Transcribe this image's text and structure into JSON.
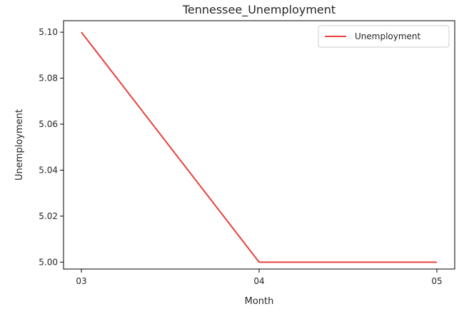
{
  "chart_data": {
    "type": "line",
    "title": "Tennessee_Unemployment",
    "xlabel": "Month",
    "ylabel": "Unemployment",
    "categories": [
      "03",
      "04",
      "05"
    ],
    "series": [
      {
        "name": "Unemployment",
        "color": "#e8413c",
        "values": [
          5.1,
          5.0,
          5.0
        ]
      }
    ],
    "ylim": [
      4.997,
      5.105
    ],
    "yticks": [
      5.0,
      5.02,
      5.04,
      5.06,
      5.08,
      5.1
    ],
    "ytick_labels": [
      "5.00",
      "5.02",
      "5.04",
      "5.06",
      "5.08",
      "5.10"
    ],
    "grid": false,
    "legend_position": "top-right"
  }
}
